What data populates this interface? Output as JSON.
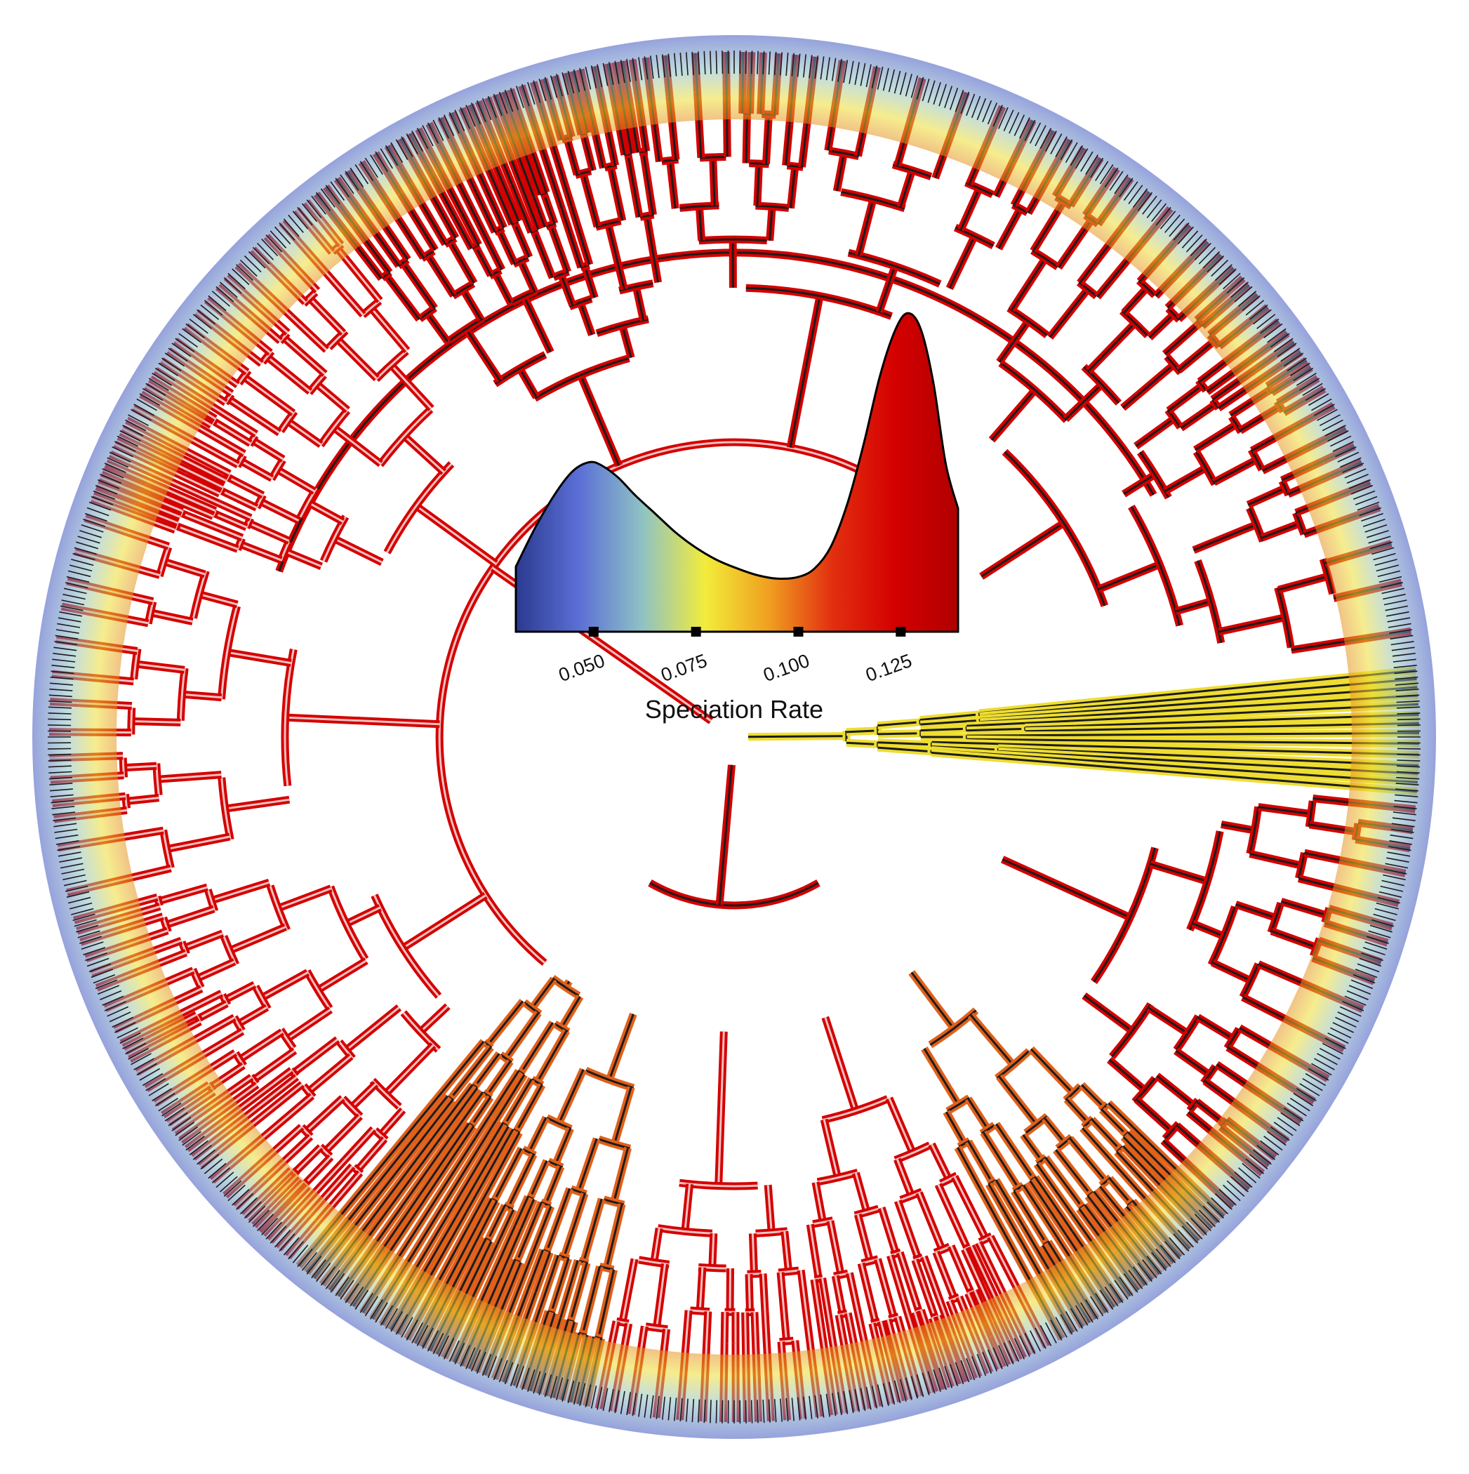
{
  "figure": {
    "legend": {
      "title": "Speciation Rate",
      "ticks": [
        {
          "label": "0.050",
          "value": 0.05
        },
        {
          "label": "0.075",
          "value": 0.075
        },
        {
          "label": "0.100",
          "value": 0.1
        },
        {
          "label": "0.125",
          "value": 0.125
        }
      ],
      "range": [
        0.031,
        0.139
      ],
      "color_stops": [
        "#2b3a8f",
        "#5b6fd6",
        "#8fc2c4",
        "#f2ec3a",
        "#f0a020",
        "#e23010",
        "#d40000",
        "#b00000"
      ],
      "density_curve": [
        [
          0.031,
          0.38
        ],
        [
          0.036,
          0.62
        ],
        [
          0.041,
          0.82
        ],
        [
          0.045,
          0.94
        ],
        [
          0.049,
          0.99
        ],
        [
          0.052,
          0.97
        ],
        [
          0.056,
          0.9
        ],
        [
          0.06,
          0.8
        ],
        [
          0.065,
          0.69
        ],
        [
          0.07,
          0.58
        ],
        [
          0.075,
          0.49
        ],
        [
          0.08,
          0.42
        ],
        [
          0.085,
          0.37
        ],
        [
          0.09,
          0.33
        ],
        [
          0.095,
          0.31
        ],
        [
          0.1,
          0.32
        ],
        [
          0.104,
          0.37
        ],
        [
          0.108,
          0.5
        ],
        [
          0.112,
          0.75
        ],
        [
          0.116,
          1.1
        ],
        [
          0.12,
          1.5
        ],
        [
          0.124,
          1.78
        ],
        [
          0.127,
          1.86
        ],
        [
          0.13,
          1.76
        ],
        [
          0.133,
          1.45
        ],
        [
          0.136,
          0.98
        ],
        [
          0.139,
          0.72
        ]
      ]
    },
    "tree": {
      "layout": "circular phylogeny",
      "colors": {
        "high": "#d40000",
        "orange": "#e0601a",
        "yellow": "#eedd30",
        "teal": "#8fc2c4",
        "blue": "#4a63c8",
        "dark": "#1c1c1c",
        "pale": "#f0c0c0"
      }
    }
  }
}
